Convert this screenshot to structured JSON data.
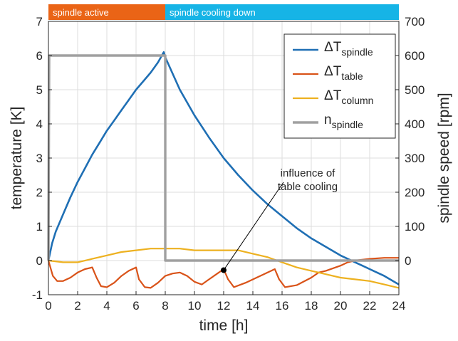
{
  "chart_data": {
    "type": "line",
    "xlabel": "time [h]",
    "ylabel_left": "temperature [K]",
    "ylabel_right": "spindle speed [rpm]",
    "xlim": [
      0,
      24
    ],
    "ylim_left": [
      -1,
      7
    ],
    "ylim_right": [
      -100,
      700
    ],
    "xticks": [
      "0",
      "2",
      "4",
      "6",
      "8",
      "10",
      "12",
      "14",
      "16",
      "18",
      "20",
      "22",
      "24"
    ],
    "yticks_left": [
      "-1",
      "0",
      "1",
      "2",
      "3",
      "4",
      "5",
      "6",
      "7"
    ],
    "yticks_right": [
      "0",
      "100",
      "200",
      "300",
      "400",
      "500",
      "600",
      "700"
    ],
    "grid": true,
    "legend_position": "top-right",
    "phases": [
      {
        "label": "spindle active",
        "x_start": 0,
        "x_end": 8,
        "color": "#ea6416"
      },
      {
        "label": "spindle cooling down",
        "x_start": 8,
        "x_end": 24,
        "color": "#16b4e6"
      }
    ],
    "series": [
      {
        "legend_main": "ΔT",
        "legend_sub": "spindle",
        "axis": "left",
        "color": "#1f6fb4",
        "x": [
          0,
          0.25,
          0.5,
          1,
          1.5,
          2,
          2.5,
          3,
          3.5,
          4,
          4.5,
          5,
          5.5,
          6,
          6.5,
          7,
          7.5,
          7.9,
          8,
          9,
          10,
          11,
          12,
          13,
          14,
          15,
          16,
          17,
          18,
          19,
          20,
          21,
          22,
          23,
          24
        ],
        "y": [
          0,
          0.5,
          0.85,
          1.35,
          1.85,
          2.3,
          2.7,
          3.1,
          3.45,
          3.8,
          4.1,
          4.4,
          4.7,
          5.0,
          5.25,
          5.5,
          5.8,
          6.1,
          5.95,
          5.0,
          4.25,
          3.6,
          3.0,
          2.5,
          2.05,
          1.65,
          1.3,
          0.95,
          0.65,
          0.4,
          0.15,
          -0.05,
          -0.25,
          -0.45,
          -0.7
        ]
      },
      {
        "legend_main": "ΔT",
        "legend_sub": "table",
        "axis": "left",
        "color": "#d95319",
        "x": [
          0,
          0.3,
          0.6,
          1,
          1.5,
          2,
          2.5,
          3,
          3.3,
          3.6,
          4,
          4.5,
          5,
          5.5,
          6,
          6.2,
          6.6,
          7,
          7.5,
          8,
          8.5,
          9,
          9.5,
          10,
          10.5,
          11,
          11.5,
          12,
          12.3,
          12.7,
          13.5,
          14.5,
          15.5,
          15.8,
          16.2,
          17,
          18,
          18.5,
          19,
          20,
          20.5,
          21,
          22,
          23,
          24
        ],
        "y": [
          0,
          -0.45,
          -0.6,
          -0.6,
          -0.5,
          -0.35,
          -0.25,
          -0.2,
          -0.5,
          -0.75,
          -0.78,
          -0.65,
          -0.45,
          -0.3,
          -0.2,
          -0.55,
          -0.78,
          -0.8,
          -0.65,
          -0.45,
          -0.38,
          -0.35,
          -0.45,
          -0.62,
          -0.7,
          -0.55,
          -0.4,
          -0.25,
          -0.55,
          -0.78,
          -0.65,
          -0.45,
          -0.25,
          -0.55,
          -0.78,
          -0.72,
          -0.5,
          -0.35,
          -0.3,
          -0.15,
          -0.05,
          0.0,
          0.05,
          0.08,
          0.08
        ]
      },
      {
        "legend_main": "ΔT",
        "legend_sub": "column",
        "axis": "left",
        "color": "#edb120",
        "x": [
          0,
          1,
          2,
          3,
          4,
          5,
          6,
          7,
          8,
          9,
          10,
          11,
          12,
          13,
          14,
          15,
          16,
          17,
          18,
          19,
          20,
          21,
          22,
          23,
          24
        ],
        "y": [
          0,
          -0.05,
          -0.05,
          0.05,
          0.15,
          0.25,
          0.3,
          0.35,
          0.35,
          0.35,
          0.3,
          0.3,
          0.3,
          0.3,
          0.2,
          0.1,
          -0.05,
          -0.2,
          -0.3,
          -0.4,
          -0.5,
          -0.55,
          -0.6,
          -0.7,
          -0.8
        ]
      },
      {
        "legend_main": "n",
        "legend_sub": "spindle",
        "axis": "right",
        "color": "#a0a0a0",
        "x": [
          0,
          0.05,
          8,
          8,
          24
        ],
        "y": [
          0,
          600,
          600,
          0,
          0
        ]
      }
    ],
    "annotations": [
      {
        "lines": [
          "influence of",
          "table cooling"
        ],
        "point_x": 12,
        "point_y": -0.28
      }
    ]
  }
}
